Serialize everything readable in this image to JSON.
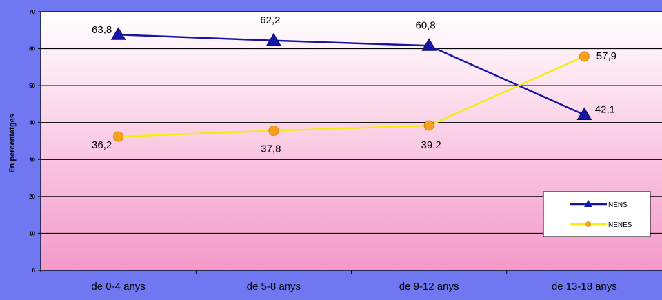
{
  "chart_data": {
    "type": "line",
    "ylabel": "En percentatges",
    "xlabel": "",
    "title": "",
    "ylim": [
      0,
      70
    ],
    "yticks": [
      "0",
      "10",
      "20",
      "30",
      "40",
      "50",
      "60",
      "70"
    ],
    "categories": [
      "de 0-4 anys",
      "de 5-8 anys",
      "de 9-12 anys",
      "de 13-18 anys"
    ],
    "series": [
      {
        "name": "NENS",
        "values": [
          63.8,
          62.2,
          60.8,
          42.1
        ],
        "labels": [
          "63,8",
          "62,2",
          "60,8",
          "42,1"
        ],
        "color": "#1515a8",
        "marker": "triangle"
      },
      {
        "name": "NENES",
        "values": [
          36.2,
          37.8,
          39.2,
          57.9
        ],
        "labels": [
          "36,2",
          "37,8",
          "39,2",
          "57,9"
        ],
        "color": "#f2ee10",
        "marker": "circle",
        "marker_color": "#f7a21a"
      }
    ],
    "legend": "bottom-right",
    "grid": true
  },
  "colors": {
    "background": "#6f78f0",
    "plot_gradient_top": "#ffffff",
    "plot_gradient_bottom": "#f49ac9"
  }
}
